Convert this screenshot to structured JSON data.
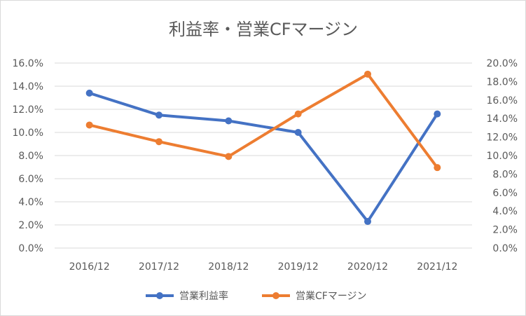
{
  "chart_data": {
    "type": "line",
    "title": "利益率・営業CFマージン",
    "categories": [
      "2016/12",
      "2017/12",
      "2018/12",
      "2019/12",
      "2020/12",
      "2021/12"
    ],
    "y_left": {
      "ticks": [
        "0.0%",
        "2.0%",
        "4.0%",
        "6.0%",
        "8.0%",
        "10.0%",
        "12.0%",
        "14.0%",
        "16.0%"
      ],
      "ylim": [
        0,
        16
      ]
    },
    "y_right": {
      "ticks": [
        "0.0%",
        "2.0%",
        "4.0%",
        "6.0%",
        "8.0%",
        "10.0%",
        "12.0%",
        "14.0%",
        "16.0%",
        "18.0%",
        "20.0%"
      ],
      "ylim": [
        0,
        20
      ]
    },
    "grid": true,
    "legend_position": "bottom",
    "series": [
      {
        "name": "営業利益率",
        "axis": "left",
        "color": "#4472c4",
        "values": [
          13.4,
          11.5,
          11.0,
          10.0,
          2.3,
          11.6
        ]
      },
      {
        "name": "営業CFマージン",
        "axis": "right",
        "color": "#ed7d31",
        "values": [
          13.3,
          11.5,
          9.9,
          14.5,
          18.8,
          8.7
        ]
      }
    ]
  }
}
